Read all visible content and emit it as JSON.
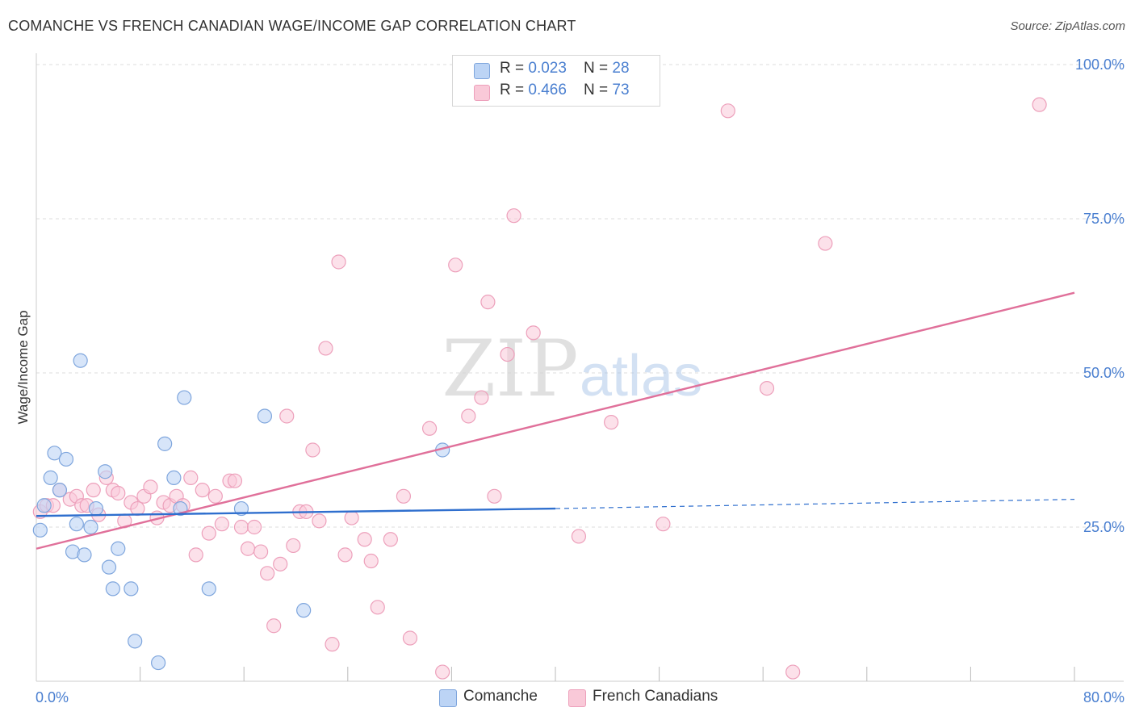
{
  "header": {
    "title": "COMANCHE VS FRENCH CANADIAN WAGE/INCOME GAP CORRELATION CHART",
    "source": "Source: ZipAtlas.com"
  },
  "stats": [
    {
      "r_label": "R = ",
      "r_value": "0.023",
      "n_label": "N = ",
      "n_value": "28"
    },
    {
      "r_label": "R = ",
      "r_value": "0.466",
      "n_label": "N = ",
      "n_value": "73"
    }
  ],
  "watermark": {
    "zip": "ZIP",
    "atlas": "atlas"
  },
  "colors": {
    "comanche_fill": "#bcd4f5",
    "comanche_stroke": "#7fa6dd",
    "comanche_line": "#2f6fce",
    "french_fill": "#f9c9d8",
    "french_stroke": "#eda0bb",
    "french_line": "#e0709a",
    "axis_text": "#4a7fd0",
    "grid": "#dddddd"
  },
  "chart_data": {
    "type": "scatter",
    "title": "COMANCHE VS FRENCH CANADIAN WAGE/INCOME GAP CORRELATION CHART",
    "xlabel": "",
    "ylabel": "Wage/Income Gap",
    "xlim": [
      0,
      80
    ],
    "ylim": [
      0,
      105
    ],
    "x_tick_labels": [
      "0.0%",
      "80.0%"
    ],
    "y_ticks": [
      25,
      50,
      75,
      100
    ],
    "y_tick_labels": [
      "25.0%",
      "50.0%",
      "75.0%",
      "100.0%"
    ],
    "grid": true,
    "legend_position": "bottom-center",
    "series": [
      {
        "name": "Comanche",
        "r": 0.023,
        "n": 28,
        "trend": {
          "x0": 0,
          "y0": 26.8,
          "x1": 40,
          "y1": 28.0,
          "dashed_to_x": 80,
          "dashed_to_y": 29.5
        },
        "points": [
          [
            0.3,
            24.5
          ],
          [
            0.6,
            28.5
          ],
          [
            1.1,
            33.0
          ],
          [
            1.4,
            37.0
          ],
          [
            1.8,
            31.0
          ],
          [
            2.3,
            36.0
          ],
          [
            2.8,
            21.0
          ],
          [
            3.1,
            25.5
          ],
          [
            3.4,
            52.0
          ],
          [
            3.7,
            20.5
          ],
          [
            4.2,
            25.0
          ],
          [
            4.6,
            28.0
          ],
          [
            5.3,
            34.0
          ],
          [
            5.6,
            18.5
          ],
          [
            5.9,
            15.0
          ],
          [
            6.3,
            21.5
          ],
          [
            7.3,
            15.0
          ],
          [
            7.6,
            6.5
          ],
          [
            9.4,
            3.0
          ],
          [
            9.9,
            38.5
          ],
          [
            10.6,
            33.0
          ],
          [
            11.1,
            28.0
          ],
          [
            11.4,
            46.0
          ],
          [
            13.3,
            15.0
          ],
          [
            15.8,
            28.0
          ],
          [
            17.6,
            43.0
          ],
          [
            20.6,
            11.5
          ],
          [
            31.3,
            37.5
          ]
        ]
      },
      {
        "name": "French Canadians",
        "r": 0.466,
        "n": 73,
        "trend": {
          "x0": 0,
          "y0": 21.5,
          "x1": 80,
          "y1": 63.0
        },
        "points": [
          [
            0.3,
            27.5
          ],
          [
            0.8,
            28.5
          ],
          [
            1.3,
            28.5
          ],
          [
            1.8,
            31.0
          ],
          [
            2.6,
            29.5
          ],
          [
            3.1,
            30.0
          ],
          [
            3.5,
            28.5
          ],
          [
            3.9,
            28.5
          ],
          [
            4.4,
            31.0
          ],
          [
            4.8,
            27.0
          ],
          [
            5.4,
            33.0
          ],
          [
            5.9,
            31.0
          ],
          [
            6.3,
            30.5
          ],
          [
            6.8,
            26.0
          ],
          [
            7.3,
            29.0
          ],
          [
            7.8,
            28.0
          ],
          [
            8.3,
            30.0
          ],
          [
            8.8,
            31.5
          ],
          [
            9.3,
            26.5
          ],
          [
            9.8,
            29.0
          ],
          [
            10.3,
            28.5
          ],
          [
            10.8,
            30.0
          ],
          [
            11.3,
            28.5
          ],
          [
            11.9,
            33.0
          ],
          [
            12.3,
            20.5
          ],
          [
            12.8,
            31.0
          ],
          [
            13.3,
            24.0
          ],
          [
            13.8,
            30.0
          ],
          [
            14.3,
            25.5
          ],
          [
            14.9,
            32.5
          ],
          [
            15.3,
            32.5
          ],
          [
            15.8,
            25.0
          ],
          [
            16.3,
            21.5
          ],
          [
            16.8,
            25.0
          ],
          [
            17.3,
            21.0
          ],
          [
            17.8,
            17.5
          ],
          [
            18.3,
            9.0
          ],
          [
            18.8,
            19.0
          ],
          [
            19.3,
            43.0
          ],
          [
            19.8,
            22.0
          ],
          [
            20.3,
            27.5
          ],
          [
            20.8,
            27.5
          ],
          [
            21.3,
            37.5
          ],
          [
            21.8,
            26.0
          ],
          [
            22.3,
            54.0
          ],
          [
            22.8,
            6.0
          ],
          [
            23.3,
            68.0
          ],
          [
            23.8,
            20.5
          ],
          [
            24.3,
            26.5
          ],
          [
            25.3,
            23.0
          ],
          [
            25.8,
            19.5
          ],
          [
            26.3,
            12.0
          ],
          [
            27.3,
            23.0
          ],
          [
            28.3,
            30.0
          ],
          [
            28.8,
            7.0
          ],
          [
            30.3,
            41.0
          ],
          [
            31.3,
            1.5
          ],
          [
            32.3,
            67.5
          ],
          [
            33.3,
            43.0
          ],
          [
            34.3,
            46.0
          ],
          [
            34.8,
            61.5
          ],
          [
            35.3,
            30.0
          ],
          [
            36.3,
            53.0
          ],
          [
            36.8,
            75.5
          ],
          [
            38.3,
            56.5
          ],
          [
            41.8,
            23.5
          ],
          [
            44.3,
            42.0
          ],
          [
            48.3,
            25.5
          ],
          [
            53.3,
            92.5
          ],
          [
            56.3,
            47.5
          ],
          [
            58.3,
            1.5
          ],
          [
            60.8,
            71.0
          ],
          [
            77.3,
            93.5
          ]
        ]
      }
    ]
  }
}
